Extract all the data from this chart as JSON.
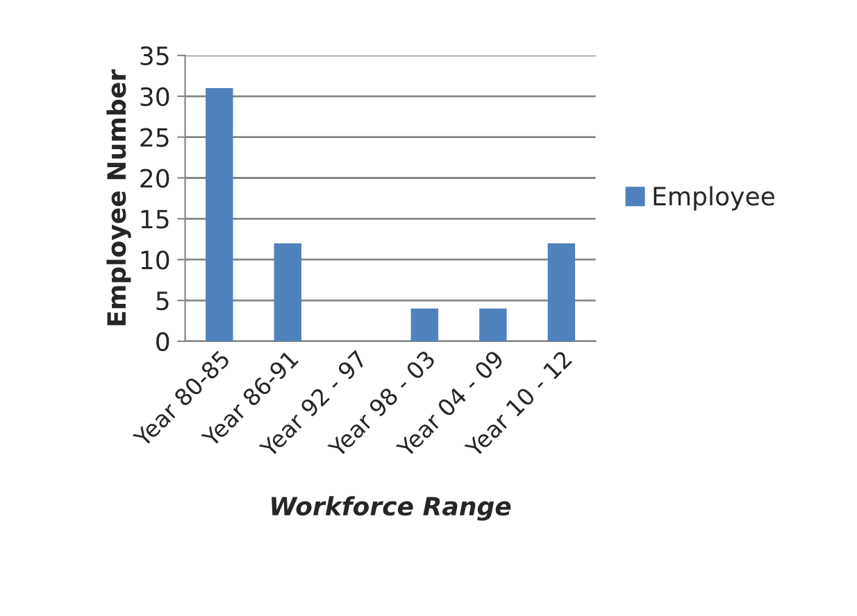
{
  "chart_data": {
    "type": "bar",
    "xlabel": "Workforce Range",
    "ylabel": "Employee Number",
    "categories": [
      "Year 80-85",
      "Year 86-91",
      "Year 92 - 97",
      "Year 98 - 03",
      "Year 04 - 09",
      "Year 10 - 12"
    ],
    "series": [
      {
        "name": "Employee",
        "color": "#4f81bd",
        "values": [
          31,
          12,
          0,
          4,
          4,
          12
        ]
      }
    ],
    "ylim": [
      0,
      35
    ],
    "yticks": [
      0,
      5,
      10,
      15,
      20,
      25,
      30,
      35
    ],
    "grid": "y",
    "legend": "right"
  }
}
